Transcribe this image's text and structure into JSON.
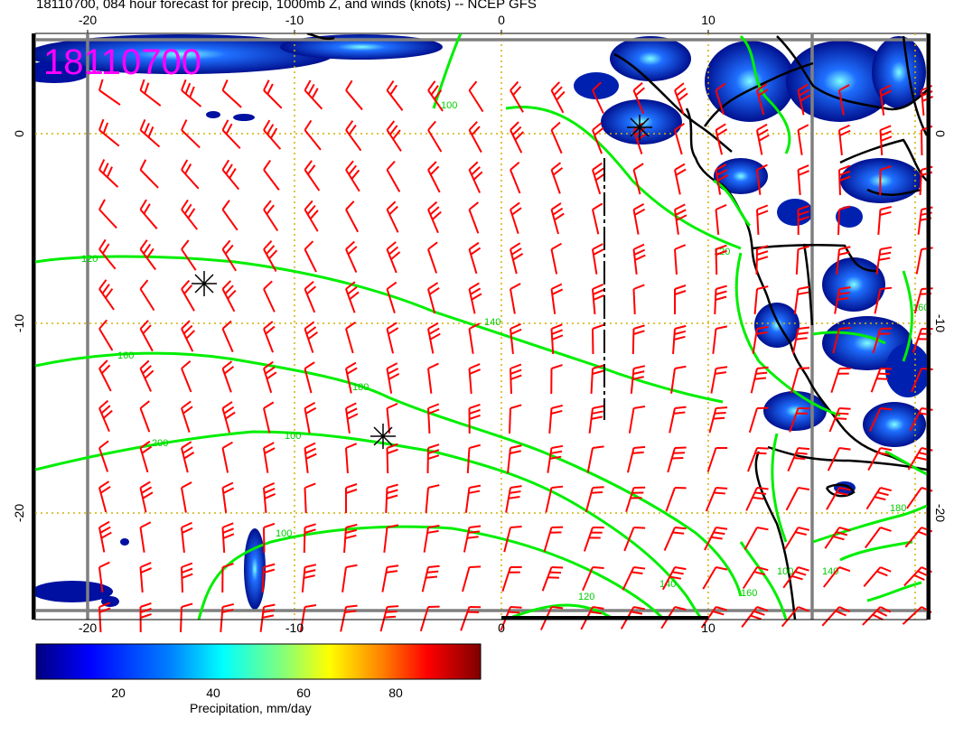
{
  "title": "18110700, 084 hour forecast for precip, 1000mb Z, and winds (knots) -- NCEP GFS",
  "stamp": "18110700",
  "axes": {
    "lon_ticks": [
      "-20",
      "-10",
      "0",
      "10"
    ],
    "lat_ticks": [
      "0",
      "-10",
      "-20"
    ]
  },
  "contours": {
    "color": "#00ee00",
    "labels": [
      "100",
      "120",
      "140",
      "160",
      "180",
      "200",
      "100",
      "100",
      "120",
      "140",
      "160",
      "100",
      "120",
      "140",
      "160",
      "180"
    ]
  },
  "colorbar": {
    "label": "Precipitation, mm/day",
    "ticks": [
      "20",
      "40",
      "60",
      "80"
    ],
    "colors": [
      "#00007f",
      "#0000ff",
      "#007fff",
      "#00ffff",
      "#7fff7f",
      "#ffff00",
      "#ff7f00",
      "#ff0000",
      "#7f0000"
    ]
  },
  "colors": {
    "wind_barbs": "#ff0000",
    "coastline": "#000000",
    "grid": "#d4b000",
    "stamp": "#ff00ff",
    "frame": "#808080"
  }
}
